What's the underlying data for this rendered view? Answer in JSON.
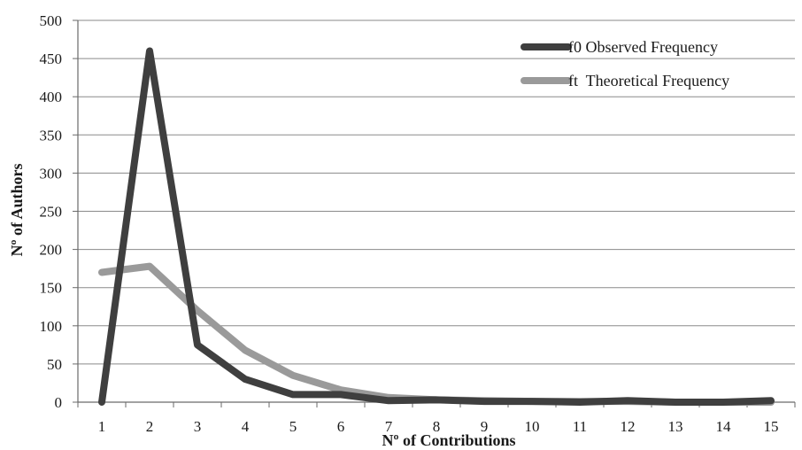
{
  "chart_data": {
    "type": "line",
    "title": "",
    "xlabel": "Nº of Contributions",
    "ylabel": "Nº of Authors",
    "categories": [
      "1",
      "2",
      "3",
      "4",
      "5",
      "6",
      "7",
      "8",
      "9",
      "10",
      "11",
      "12",
      "13",
      "14",
      "15"
    ],
    "ylim": [
      0,
      500
    ],
    "yticks": [
      0,
      50,
      100,
      150,
      200,
      250,
      300,
      350,
      400,
      450,
      500
    ],
    "grid": true,
    "legend_position": "top-right",
    "series": [
      {
        "name": "f0 Observed Frequency",
        "color": "#3f3f3f",
        "values": [
          0,
          460,
          75,
          30,
          10,
          10,
          2,
          3,
          1,
          1,
          0,
          2,
          0,
          0,
          2
        ]
      },
      {
        "name": "ft  Theoretical Frequency",
        "color": "#9a9a9a",
        "values": [
          170,
          178,
          120,
          68,
          35,
          16,
          6,
          3,
          2,
          1,
          1,
          1,
          0,
          0,
          0
        ]
      }
    ]
  }
}
